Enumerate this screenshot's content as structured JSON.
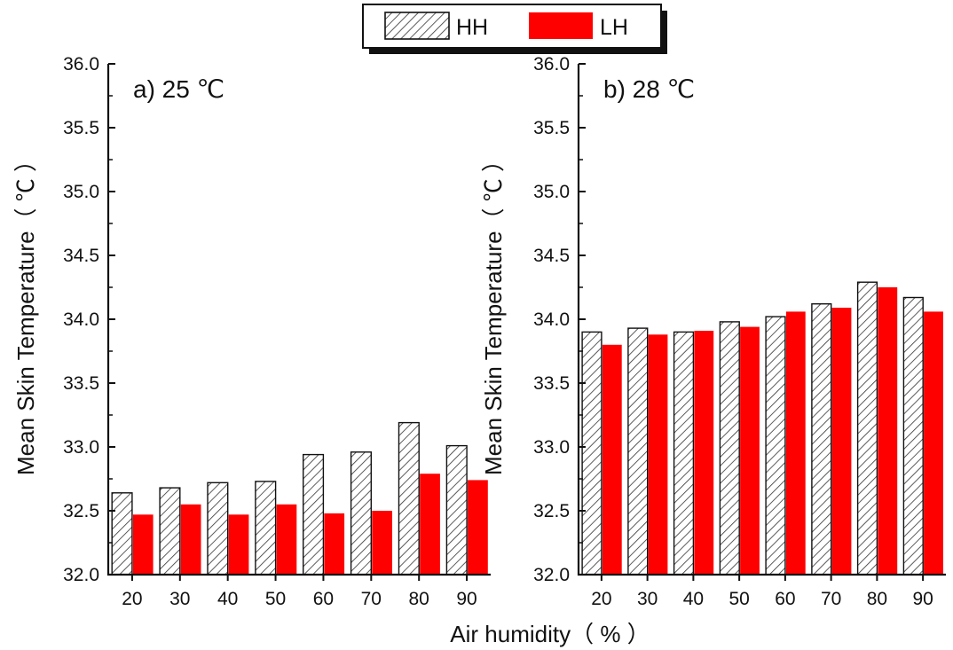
{
  "legend": {
    "items": [
      {
        "name": "HH",
        "pattern": "hatch",
        "color": "#ffffff"
      },
      {
        "name": "LH",
        "pattern": "solid",
        "color": "#ff0000"
      }
    ]
  },
  "xlabel": "Air humidity（ % ）",
  "chart_data": [
    {
      "type": "bar",
      "panel_label": "a) 25 ℃",
      "ylabel": "Mean Skin Temperature（ ℃ ）",
      "categories": [
        "20",
        "30",
        "40",
        "50",
        "60",
        "70",
        "80",
        "90"
      ],
      "ylim": [
        32.0,
        36.0
      ],
      "yticks": [
        "32.0",
        "32.5",
        "33.0",
        "33.5",
        "34.0",
        "34.5",
        "35.0",
        "35.5",
        "36.0"
      ],
      "series": [
        {
          "name": "HH",
          "values": [
            32.64,
            32.68,
            32.72,
            32.73,
            32.94,
            32.96,
            33.19,
            33.01
          ]
        },
        {
          "name": "LH",
          "values": [
            32.47,
            32.55,
            32.47,
            32.55,
            32.48,
            32.5,
            32.79,
            32.74
          ]
        }
      ]
    },
    {
      "type": "bar",
      "panel_label": "b) 28 ℃",
      "ylabel": "Mean Skin Temperature（ ℃ ）",
      "categories": [
        "20",
        "30",
        "40",
        "50",
        "60",
        "70",
        "80",
        "90"
      ],
      "ylim": [
        32.0,
        36.0
      ],
      "yticks": [
        "32.0",
        "32.5",
        "33.0",
        "33.5",
        "34.0",
        "34.5",
        "35.0",
        "35.5",
        "36.0"
      ],
      "series": [
        {
          "name": "HH",
          "values": [
            33.9,
            33.93,
            33.9,
            33.98,
            34.02,
            34.12,
            34.29,
            34.17
          ]
        },
        {
          "name": "LH",
          "values": [
            33.8,
            33.88,
            33.91,
            33.94,
            34.06,
            34.09,
            34.25,
            34.06
          ]
        }
      ]
    }
  ]
}
